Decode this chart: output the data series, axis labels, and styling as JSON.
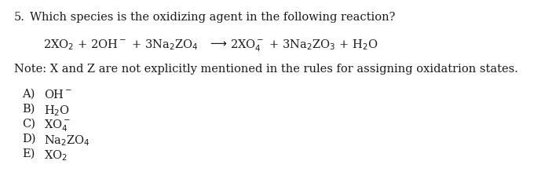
{
  "question_number": "5.",
  "question_text": "  Which species is the oxidizing agent in the following reaction?",
  "reaction_left": "2XO$_2$ + 2OH$^-$ + 3Na$_2$ZO$_4$",
  "reaction_arrow": "$\\longrightarrow$",
  "reaction_right": "2XO$_4^-$ + 3Na$_2$ZO$_3$ + H$_2$O",
  "note": "Note: X and Z are not explicitly mentioned in the rules for assigning oxidatrion states.",
  "choices": [
    [
      "A)",
      "OH$^-$"
    ],
    [
      "B)",
      "H$_2$O"
    ],
    [
      "C)",
      "XO$_4^-$"
    ],
    [
      "D)",
      "Na$_2$ZO$_4$"
    ],
    [
      "E)",
      "XO$_2$"
    ]
  ],
  "background_color": "#ffffff",
  "text_color": "#1a1a1a",
  "font_size": 10.5
}
